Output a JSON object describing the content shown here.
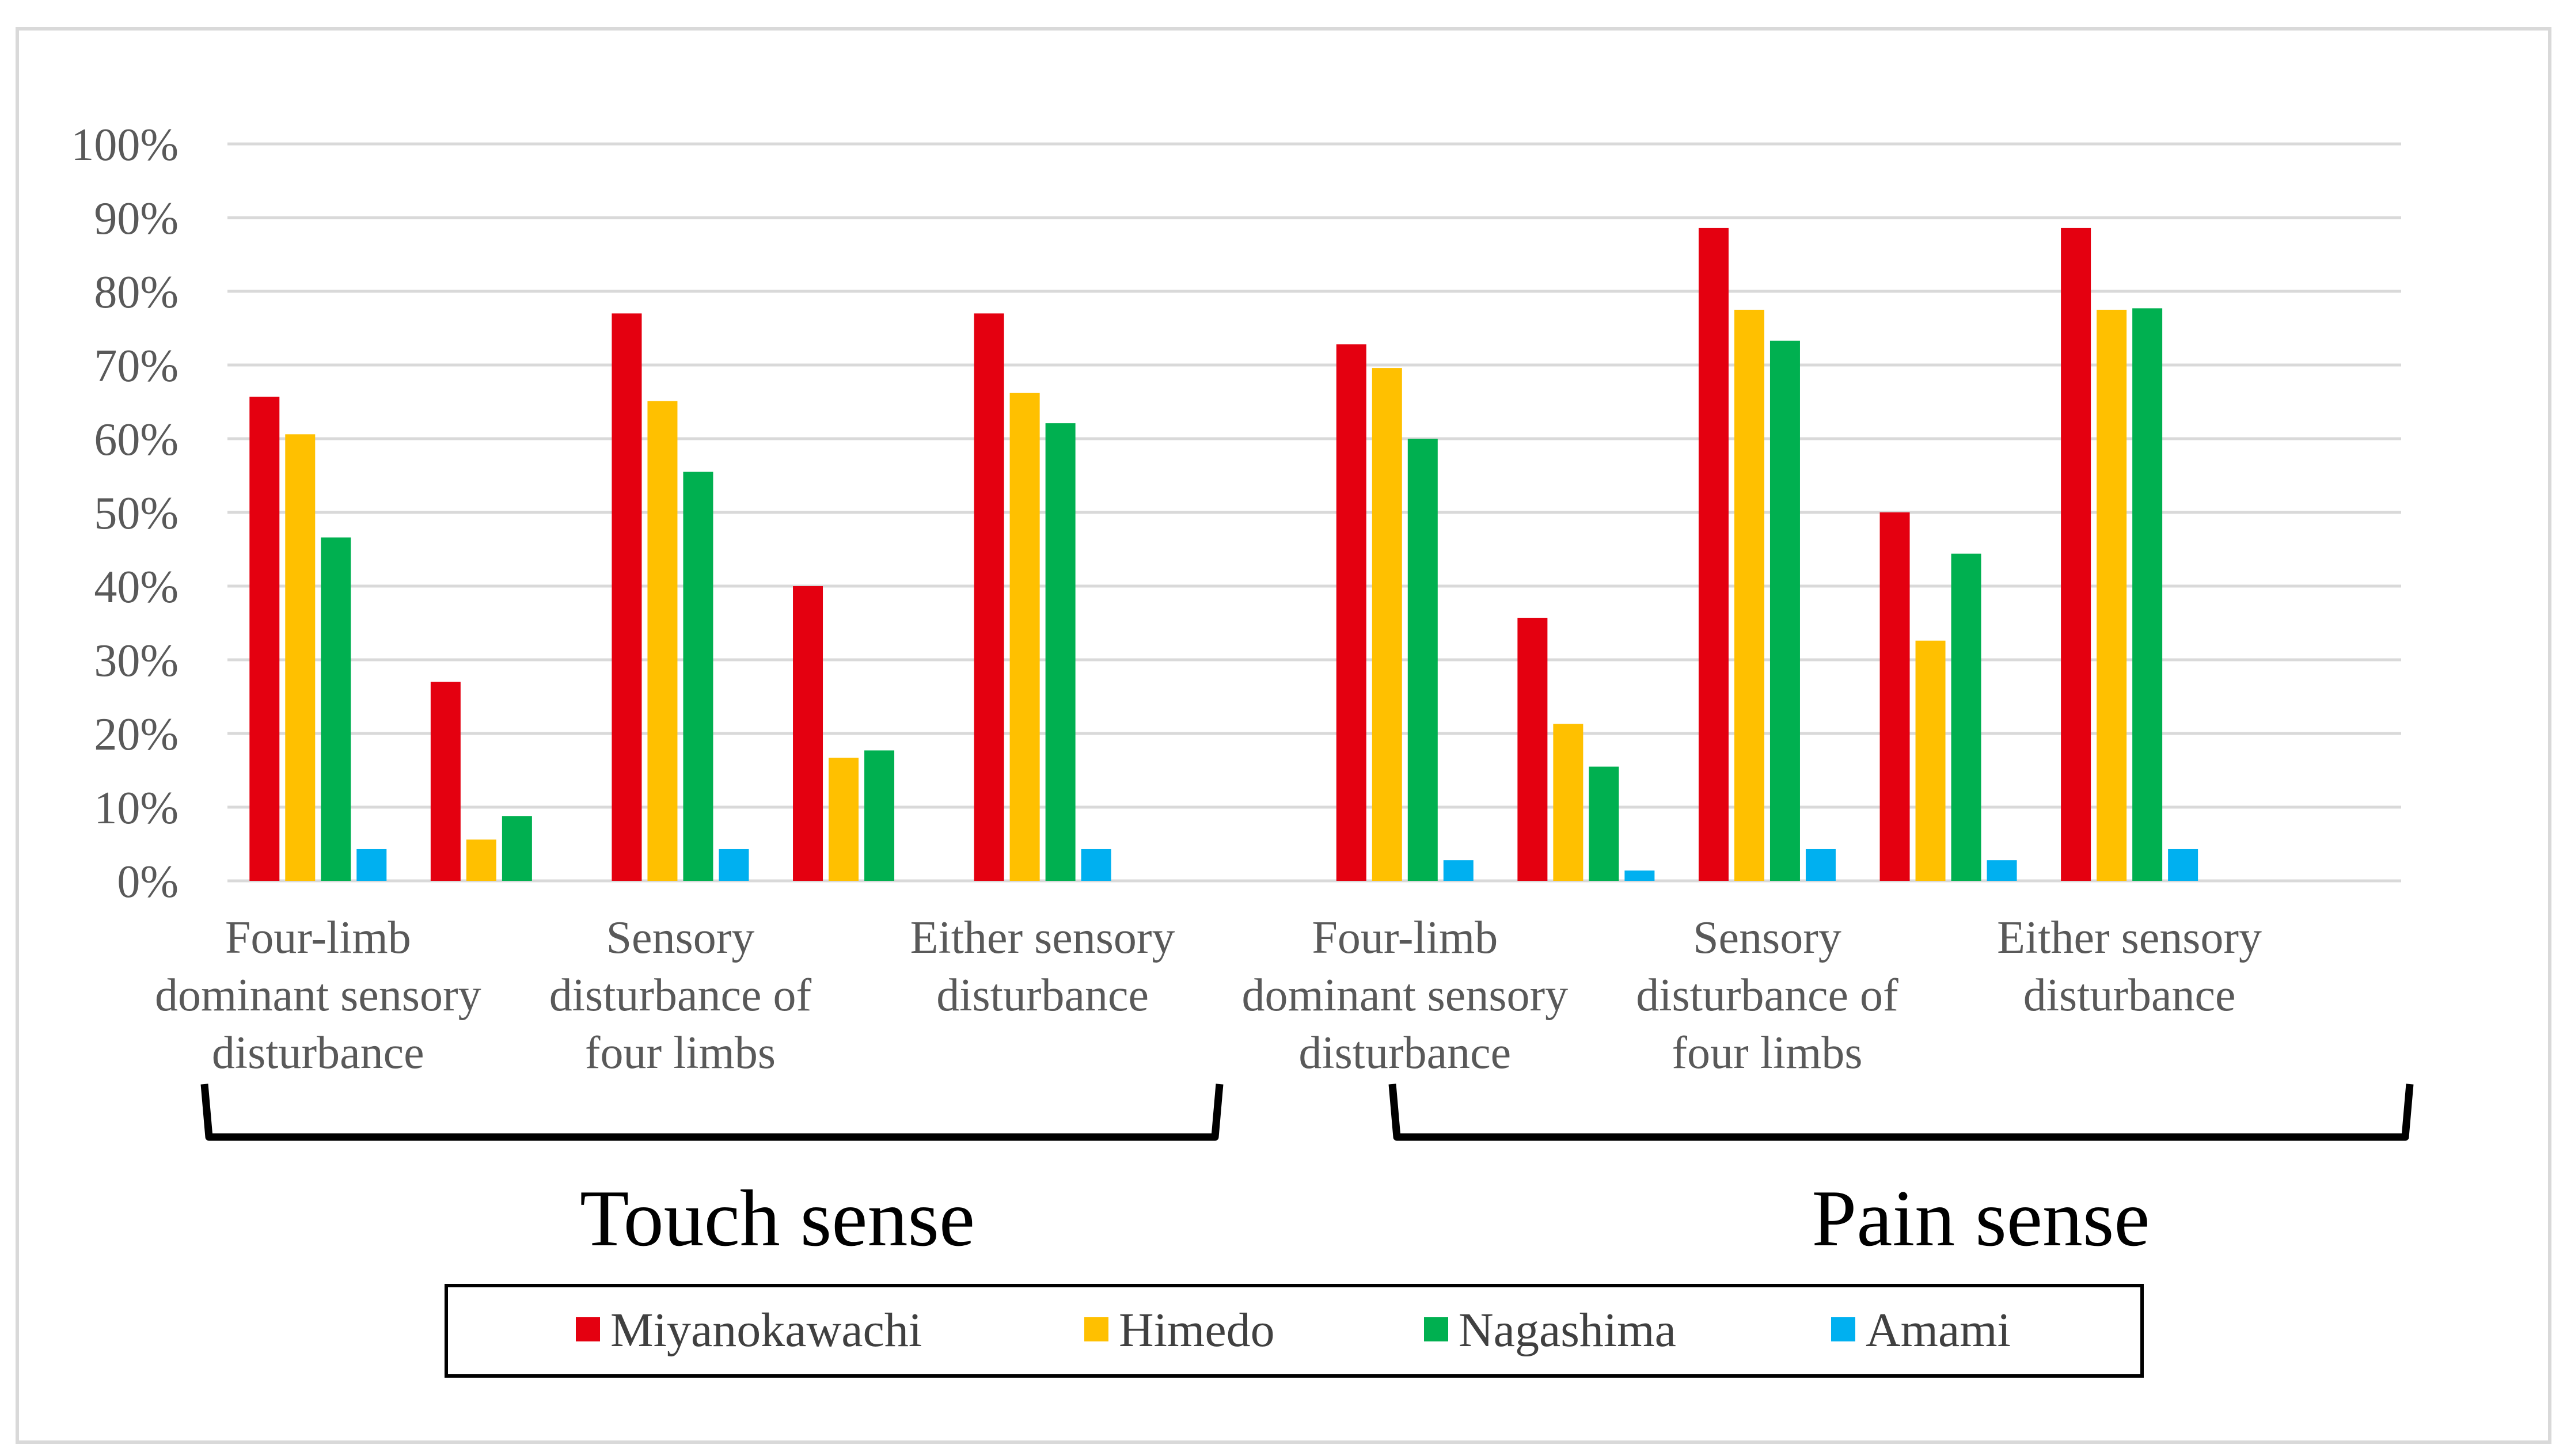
{
  "chart_data": {
    "type": "bar",
    "title": "",
    "xlabel": "",
    "ylabel": "",
    "ylim": [
      0,
      100
    ],
    "y_ticks": [
      "0%",
      "10%",
      "20%",
      "30%",
      "40%",
      "50%",
      "60%",
      "70%",
      "80%",
      "90%",
      "100%"
    ],
    "grid": true,
    "legend_position": "bottom",
    "categories": [
      "",
      "",
      "",
      "",
      "",
      "",
      "",
      "",
      "",
      "",
      "",
      ""
    ],
    "category_labels": [
      {
        "slot": 0,
        "lines": [
          "Four-limb",
          "dominant sensory",
          "disturbance"
        ]
      },
      {
        "slot": 2,
        "lines": [
          "Sensory",
          "disturbance of",
          "four limbs"
        ]
      },
      {
        "slot": 4,
        "lines": [
          "Either sensory",
          "disturbance"
        ]
      },
      {
        "slot": 6,
        "lines": [
          "Four-limb",
          "dominant sensory",
          "disturbance"
        ]
      },
      {
        "slot": 8,
        "lines": [
          "Sensory",
          "disturbance of",
          "four limbs"
        ]
      },
      {
        "slot": 10,
        "lines": [
          "Either sensory",
          "disturbance"
        ]
      }
    ],
    "groups": [
      {
        "label": "Touch sense",
        "slots": [
          0,
          5
        ]
      },
      {
        "label": "Pain sense",
        "slots": [
          6,
          11
        ]
      }
    ],
    "series": [
      {
        "name": "Miyanokawachi",
        "color": "#e40010",
        "values": [
          65.7,
          27.0,
          77.0,
          40.0,
          77.0,
          null,
          72.8,
          35.7,
          88.6,
          50.0,
          88.6,
          null
        ]
      },
      {
        "name": "Himedo",
        "color": "#ffc000",
        "values": [
          60.6,
          5.6,
          65.1,
          16.7,
          66.2,
          null,
          69.6,
          21.3,
          77.5,
          32.6,
          77.5,
          null
        ]
      },
      {
        "name": "Nagashima",
        "color": "#00b050",
        "values": [
          46.6,
          8.8,
          55.5,
          17.7,
          62.1,
          null,
          60.0,
          15.5,
          73.3,
          44.4,
          77.7,
          null
        ]
      },
      {
        "name": "Amami",
        "color": "#00b0f0",
        "values": [
          4.3,
          null,
          4.3,
          null,
          4.3,
          null,
          2.8,
          1.4,
          4.3,
          2.8,
          4.3,
          null
        ]
      }
    ]
  }
}
